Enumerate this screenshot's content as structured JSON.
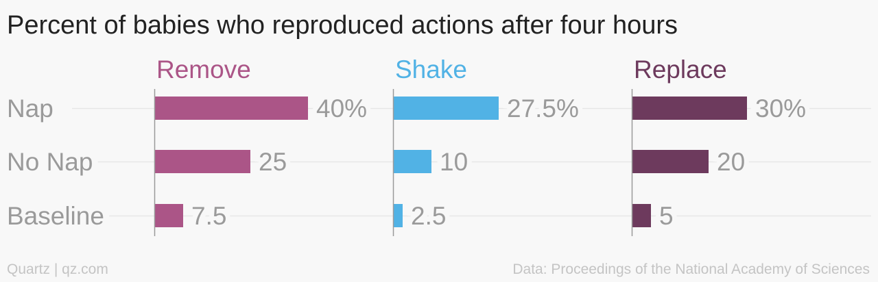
{
  "chart_data": {
    "type": "bar",
    "title": "Percent of babies who reproduced actions after four hours",
    "categories": [
      "Nap",
      "No Nap",
      "Baseline"
    ],
    "series": [
      {
        "name": "Remove",
        "color": "#ab5587",
        "values": [
          40,
          25,
          7.5
        ],
        "labels": [
          "40%",
          "25",
          "7.5"
        ]
      },
      {
        "name": "Shake",
        "color": "#51b2e5",
        "values": [
          27.5,
          10,
          2.5
        ],
        "labels": [
          "27.5%",
          "10",
          "2.5"
        ]
      },
      {
        "name": "Replace",
        "color": "#6d3a5d",
        "values": [
          30,
          20,
          5
        ],
        "labels": [
          "30%",
          "20",
          "5"
        ]
      }
    ],
    "grid": true
  },
  "footer": {
    "credit": "Quartz | qz.com",
    "source": "Data: Proceedings of the National Academy of Sciences"
  }
}
